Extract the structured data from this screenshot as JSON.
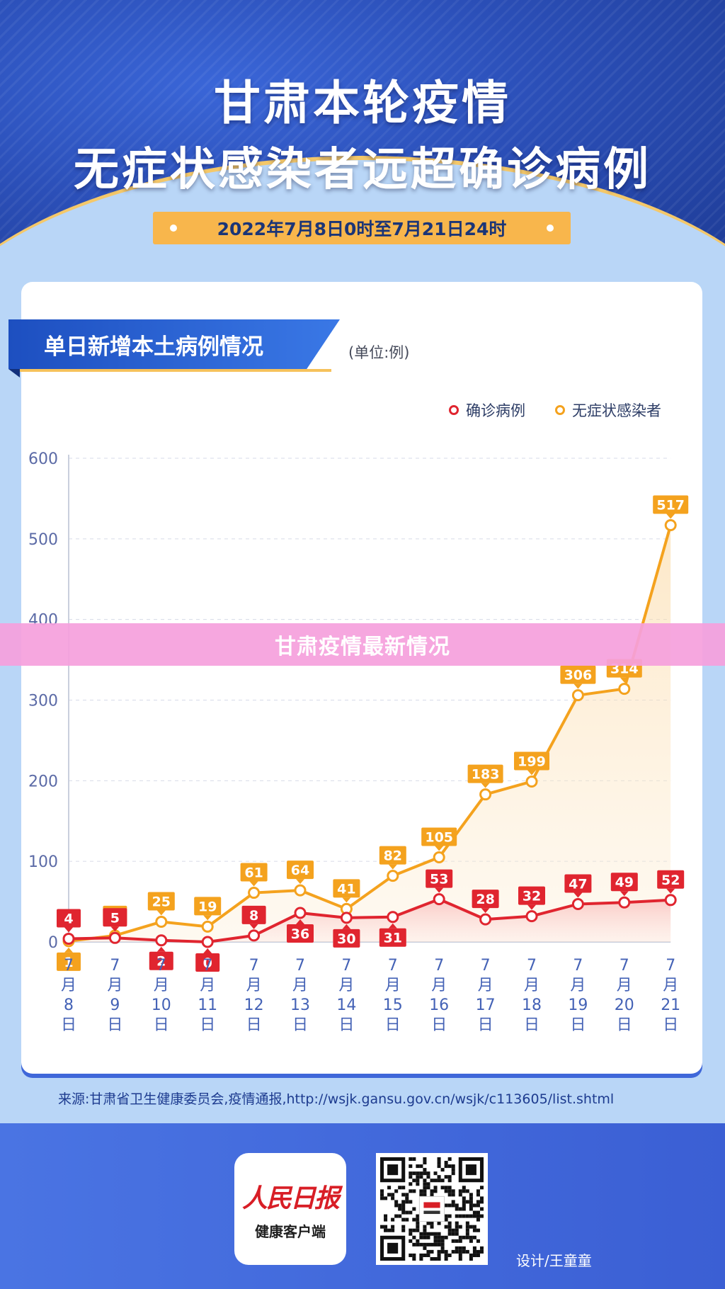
{
  "header": {
    "title_line1": "甘肃本轮疫情",
    "title_line2": "无症状感染者远超确诊病例",
    "date_range": "2022年7月8日0时至7月21日24时"
  },
  "section": {
    "title": "单日新增本土病例情况",
    "unit": "(单位:例)"
  },
  "watermark": "甘肃疫情最新情况",
  "source": "来源:甘肃省卫生健康委员会,疫情通报,http://wsjk.gansu.gov.cn/wsjk/c113605/list.shtml",
  "footer": {
    "logo_name": "人民日报",
    "logo_sub": "健康客户端",
    "designer": "设计/王童童"
  },
  "colors": {
    "confirmed": "#e0252f",
    "asymptomatic": "#f4a21e",
    "axis": "#4462b6"
  },
  "chart_data": {
    "type": "line",
    "categories": [
      "7月8日",
      "7月9日",
      "7月10日",
      "7月11日",
      "7月12日",
      "7月13日",
      "7月14日",
      "7月15日",
      "7月16日",
      "7月17日",
      "7月18日",
      "7月19日",
      "7月20日",
      "7月21日"
    ],
    "series": [
      {
        "name": "确诊病例",
        "values": [
          4,
          5,
          2,
          0,
          8,
          36,
          30,
          31,
          53,
          28,
          32,
          47,
          49,
          52
        ]
      },
      {
        "name": "无症状感染者",
        "values": [
          1,
          8,
          25,
          19,
          61,
          64,
          41,
          82,
          105,
          183,
          199,
          306,
          314,
          517
        ]
      }
    ],
    "yticks": [
      0,
      100,
      200,
      300,
      400,
      500,
      600
    ],
    "ylim": [
      0,
      600
    ],
    "title": "单日新增本土病例情况",
    "xlabel": "",
    "ylabel": "",
    "grid": true,
    "legend_position": "top-right"
  }
}
